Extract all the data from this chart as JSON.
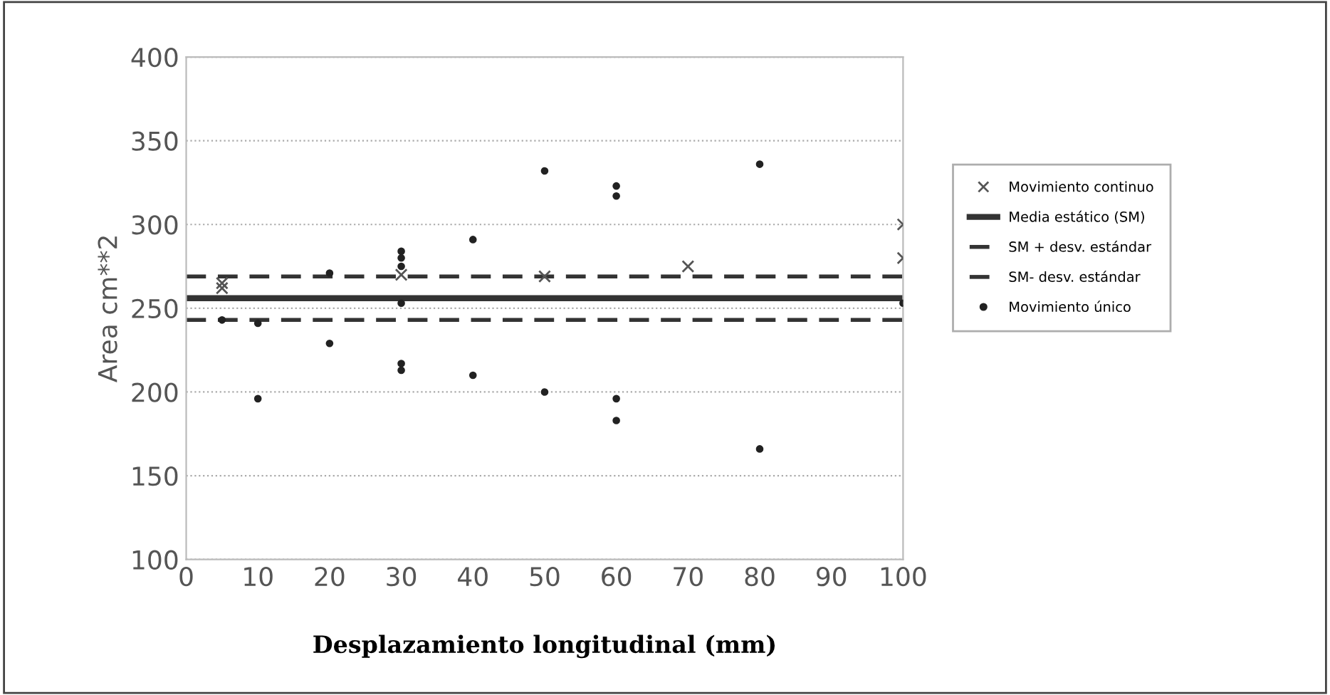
{
  "chart_data": {
    "type": "scatter",
    "xlabel": "Desplazamiento longitudinal (mm)",
    "ylabel": "Area cm**2",
    "xlim": [
      0,
      100
    ],
    "xticks": [
      0,
      10,
      20,
      30,
      40,
      50,
      60,
      70,
      80,
      90,
      100
    ],
    "ylim": [
      100,
      400
    ],
    "yticks": [
      100,
      150,
      200,
      250,
      300,
      350,
      400
    ],
    "grid": "y",
    "legend": "right",
    "series": [
      {
        "name": "Movimiento continuo",
        "color": "#555555",
        "marker": "cross",
        "x": [
          5,
          5,
          30,
          50,
          70,
          100,
          100
        ],
        "values": [
          265,
          262,
          270,
          269,
          275,
          300,
          280
        ]
      },
      {
        "name": "Movimiento único",
        "color": "#222222",
        "marker": "circle",
        "x": [
          5,
          10,
          10,
          20,
          20,
          30,
          30,
          30,
          30,
          30,
          30,
          40,
          40,
          50,
          50,
          60,
          60,
          60,
          60,
          80,
          80,
          100
        ],
        "values": [
          243,
          241,
          196,
          271,
          229,
          284,
          280,
          275,
          253,
          217,
          213,
          291,
          210,
          332,
          200,
          323,
          317,
          196,
          183,
          336,
          166,
          253
        ]
      }
    ],
    "ref_lines": [
      {
        "axis": "y",
        "value": 256,
        "label": "Media estático (SM)",
        "color": "#333333",
        "line_style": "solid"
      },
      {
        "axis": "y",
        "value": 269,
        "label": "SM + desv. estándar",
        "color": "#333333",
        "line_style": "dashed"
      },
      {
        "axis": "y",
        "value": 243,
        "label": "SM- desv. estándar",
        "color": "#333333",
        "line_style": "dashed"
      }
    ]
  }
}
